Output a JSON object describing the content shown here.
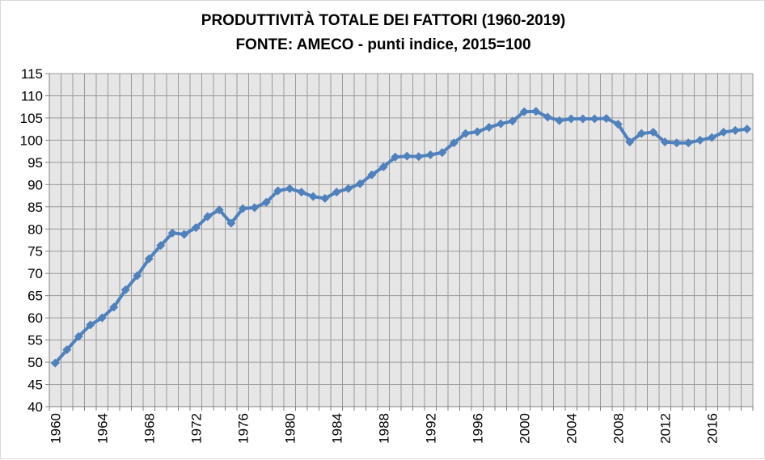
{
  "chart_data": {
    "type": "line",
    "title": "PRODUTTIVITÀ TOTALE DEI FATTORI (1960-2019)",
    "subtitle": "FONTE: AMECO - punti indice, 2015=100",
    "xlabel": "",
    "ylabel": "",
    "ylim": [
      40,
      115
    ],
    "ytick_step": 5,
    "xlim": [
      1960,
      2019
    ],
    "xtick_labels": [
      "1960",
      "1964",
      "1968",
      "1972",
      "1976",
      "1980",
      "1984",
      "1988",
      "1992",
      "1996",
      "2000",
      "2004",
      "2008",
      "2012",
      "2016"
    ],
    "grid": true,
    "legend": "none",
    "series": [
      {
        "color": "#4f81bd",
        "x": [
          1960,
          1961,
          1962,
          1963,
          1964,
          1965,
          1966,
          1967,
          1968,
          1969,
          1970,
          1971,
          1972,
          1973,
          1974,
          1975,
          1976,
          1977,
          1978,
          1979,
          1980,
          1981,
          1982,
          1983,
          1984,
          1985,
          1986,
          1987,
          1988,
          1989,
          1990,
          1991,
          1992,
          1993,
          1994,
          1995,
          1996,
          1997,
          1998,
          1999,
          2000,
          2001,
          2002,
          2003,
          2004,
          2005,
          2006,
          2007,
          2008,
          2009,
          2010,
          2011,
          2012,
          2013,
          2014,
          2015,
          2016,
          2017,
          2018,
          2019
        ],
        "values": [
          49.8,
          52.8,
          55.8,
          58.4,
          60.0,
          62.4,
          66.3,
          69.5,
          73.3,
          76.3,
          79.1,
          78.8,
          80.3,
          82.8,
          84.3,
          81.3,
          84.6,
          84.8,
          86.0,
          88.6,
          89.1,
          88.3,
          87.3,
          86.9,
          88.3,
          89.1,
          90.2,
          92.2,
          94.0,
          96.2,
          96.4,
          96.3,
          96.7,
          97.2,
          99.4,
          101.5,
          101.9,
          102.9,
          103.7,
          104.3,
          106.4,
          106.5,
          105.2,
          104.4,
          104.8,
          104.8,
          104.8,
          104.9,
          103.6,
          99.6,
          101.5,
          101.8,
          99.6,
          99.4,
          99.4,
          100.0,
          100.6,
          101.8,
          102.2,
          102.5
        ]
      }
    ]
  }
}
